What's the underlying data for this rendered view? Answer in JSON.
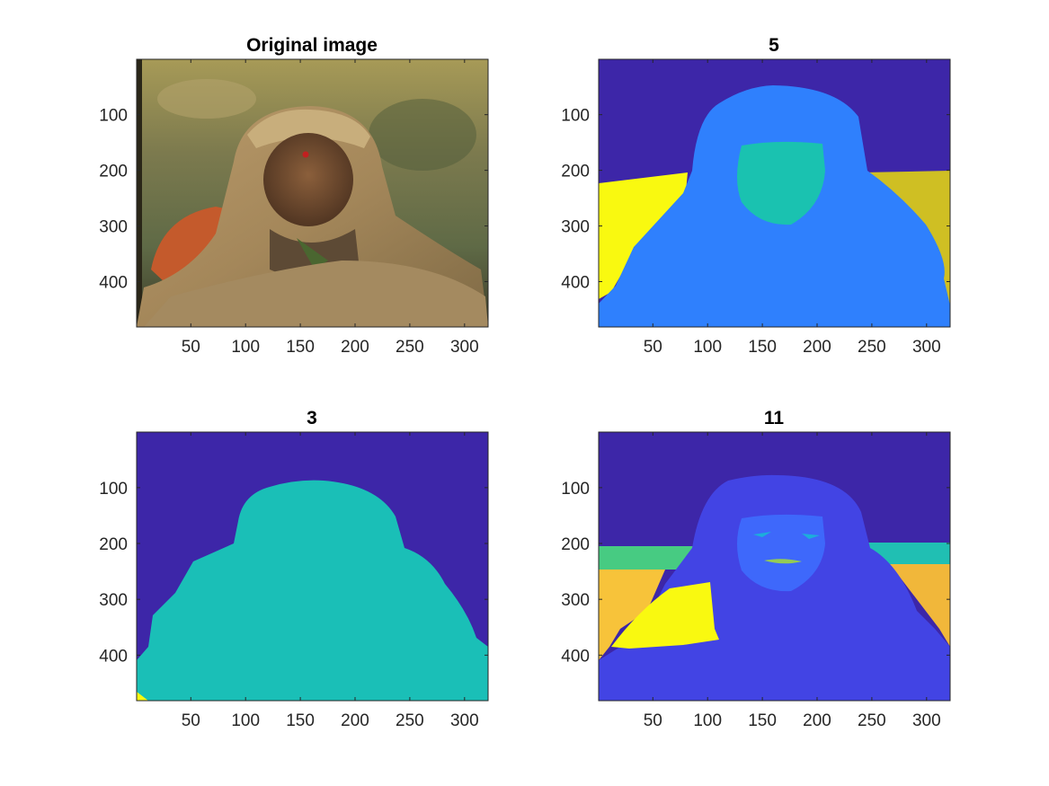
{
  "chart_data": [
    {
      "type": "image",
      "title": "Original image",
      "xticks": [
        50,
        100,
        150,
        200,
        250,
        300
      ],
      "yticks": [
        100,
        200,
        300,
        400
      ],
      "xlim": [
        0.5,
        321.5
      ],
      "ylim": [
        0.5,
        481.5
      ],
      "y_direction": "reversed",
      "image_size": [
        321,
        481
      ],
      "content": "photograph"
    },
    {
      "type": "heatmap",
      "title": "5",
      "xticks": [
        50,
        100,
        150,
        200,
        250,
        300
      ],
      "yticks": [
        100,
        200,
        300,
        400
      ],
      "xlim": [
        0.5,
        321.5
      ],
      "ylim": [
        0.5,
        481.5
      ],
      "y_direction": "reversed",
      "image_size": [
        321,
        481
      ],
      "colormap": "parula",
      "num_clusters": 5,
      "colors": [
        "#3d26a8",
        "#2f80fd",
        "#1ac2b0",
        "#cfbf23",
        "#f9f910"
      ]
    },
    {
      "type": "heatmap",
      "title": "3",
      "xticks": [
        50,
        100,
        150,
        200,
        250,
        300
      ],
      "yticks": [
        100,
        200,
        300,
        400
      ],
      "xlim": [
        0.5,
        321.5
      ],
      "ylim": [
        0.5,
        481.5
      ],
      "y_direction": "reversed",
      "image_size": [
        321,
        481
      ],
      "colormap": "parula",
      "num_clusters": 3,
      "colors": [
        "#3d26a8",
        "#1abfb7",
        "#f9f910"
      ]
    },
    {
      "type": "heatmap",
      "title": "11",
      "xticks": [
        50,
        100,
        150,
        200,
        250,
        300
      ],
      "yticks": [
        100,
        200,
        300,
        400
      ],
      "xlim": [
        0.5,
        321.5
      ],
      "ylim": [
        0.5,
        481.5
      ],
      "y_direction": "reversed",
      "image_size": [
        321,
        481
      ],
      "colormap": "parula",
      "num_clusters": 11,
      "colors": [
        "#3d26a8",
        "#4244e4",
        "#3e68fb",
        "#2b8ff3",
        "#1caedb",
        "#20bfb3",
        "#47cb82",
        "#94cb55",
        "#d9bd3c",
        "#f7c33a",
        "#f9f910"
      ]
    }
  ]
}
